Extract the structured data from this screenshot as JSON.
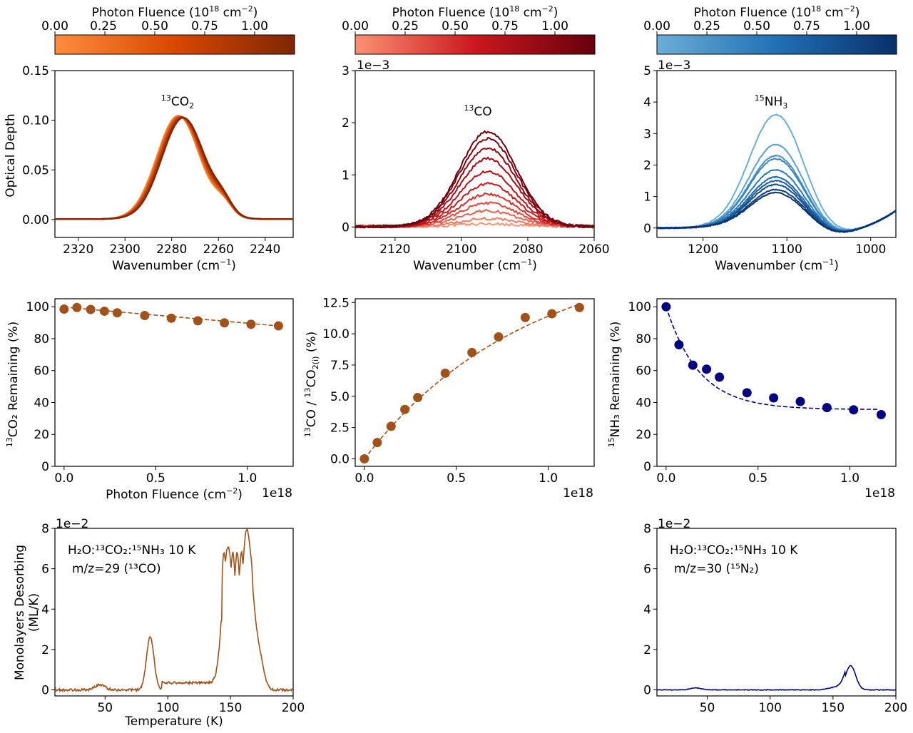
{
  "colors": {
    "orange_map": [
      "#fd8d3c",
      "#d94801",
      "#7f2704"
    ],
    "red_map": [
      "#fc9272",
      "#cb181d",
      "#67000d"
    ],
    "blue_map": [
      "#6baed6",
      "#2171b5",
      "#08306b"
    ],
    "fit_orange": "#a0521a",
    "point_orange": "#a0521a",
    "point_navy": "#000080",
    "tpd_orange": "#a0521a",
    "tpd_navy": "#000080"
  },
  "colorbars": [
    {
      "label_pre": "Photon Fluence (10",
      "label_sup": "18",
      "label_mid": " cm",
      "label_sup2": "−2",
      "label_post": ")",
      "ticks": [
        "0.00",
        "0.25",
        "0.50",
        "0.75",
        "1.00"
      ]
    },
    {
      "label_pre": "Photon Fluence (10",
      "label_sup": "18",
      "label_mid": " cm",
      "label_sup2": "−2",
      "label_post": ")",
      "ticks": [
        "0.00",
        "0.25",
        "0.50",
        "0.75",
        "1.00"
      ]
    },
    {
      "label_pre": "Photon Fluence (10",
      "label_sup": "18",
      "label_mid": " cm",
      "label_sup2": "−2",
      "label_post": ")",
      "ticks": [
        "0.00",
        "0.25",
        "0.50",
        "0.75",
        "1.00"
      ]
    }
  ],
  "labels": {
    "wavenumber_pre": "Wavenumber (cm",
    "wavenumber_sup": "−1",
    "wavenumber_post": ")",
    "optical_depth": "Optical Depth",
    "co2_annot": "CO",
    "co2_sup": "13",
    "co2_sub": "2",
    "co_annot": "CO",
    "co_sup": "13",
    "nh3_annot": "NH",
    "nh3_sup": "15",
    "nh3_sub": "3",
    "offset_1e3": "1e−3",
    "offset_1e18": "1e18",
    "offset_1e2": "1e−2",
    "co2_remaining": "CO₂ Remaining (%)",
    "co2_remaining_sup": "13",
    "ratio_ylabel_a": "CO / ",
    "ratio_ylabel_b": "CO",
    "ratio_ylabel_sub": "2(i)",
    "ratio_ylabel_c": " (%)",
    "nh3_remaining": "NH₃ Remaining (%)",
    "nh3_remaining_sup": "15",
    "fluence_xlabel_pre": "Photon Fluence (cm",
    "fluence_xlabel_sup": "−2",
    "fluence_xlabel_post": ")",
    "tpd_ylabel_1": "Monolayers Desorbing",
    "tpd_ylabel_2": "(ML/K)",
    "temperature": "Temperature (K)",
    "tpd_left_line1": "H₂O:¹³CO₂:¹⁵NH₃ 10 K",
    "tpd_left_line2": "m/z=29 (¹³CO)",
    "tpd_right_line1": "H₂O:¹³CO₂:¹⁵NH₃ 10 K",
    "tpd_right_line2": "m/z=30 (¹⁵N₂)"
  },
  "chart_data": [
    {
      "id": "ir_co2",
      "type": "line",
      "title": "13CO2 band",
      "xlabel": "Wavenumber (cm−1)",
      "ylabel": "Optical Depth",
      "xlim": [
        2330,
        2228
      ],
      "ylim": [
        -0.018,
        0.15
      ],
      "xticks": [
        2320,
        2300,
        2280,
        2260,
        2240
      ],
      "yticks": [
        0.0,
        0.05,
        0.1,
        0.15
      ],
      "ytick_labels": [
        "0.00",
        "0.05",
        "0.10",
        "0.15"
      ],
      "peak_center": 2275,
      "peak_height_start": 0.104,
      "peak_height_end": 0.102,
      "n_series": 11
    },
    {
      "id": "ir_co",
      "type": "line",
      "title": "13CO band",
      "xlabel": "Wavenumber (cm−1)",
      "ylabel": "",
      "xlim": [
        2132,
        2060
      ],
      "ylim": [
        -0.2,
        3.0
      ],
      "xticks": [
        2120,
        2100,
        2080,
        2060
      ],
      "yticks": [
        0,
        1,
        2,
        3
      ],
      "offset": "1e−3",
      "peak_center": 2092,
      "peak_heights": [
        0.05,
        0.15,
        0.3,
        0.45,
        0.62,
        0.82,
        1.05,
        1.3,
        1.5,
        1.68,
        1.82
      ]
    },
    {
      "id": "ir_nh3",
      "type": "line",
      "title": "15NH3 band",
      "xlabel": "Wavenumber (cm−1)",
      "ylabel": "",
      "xlim": [
        1255,
        970
      ],
      "ylim": [
        -0.3,
        5.0
      ],
      "xticks": [
        1200,
        1100,
        1000
      ],
      "yticks": [
        0,
        1,
        2,
        3,
        4,
        5
      ],
      "offset": "1e−3",
      "peak_center": 1113,
      "peak_heights": [
        3.6,
        2.65,
        2.3,
        2.2,
        1.85,
        1.62,
        1.5,
        1.38,
        1.22,
        1.12
      ]
    },
    {
      "id": "co2_remaining",
      "type": "scatter",
      "xlabel": "Photon Fluence (cm−2)",
      "ylabel": "13CO2 Remaining (%)",
      "x": [
        0.0,
        0.07,
        0.145,
        0.22,
        0.29,
        0.44,
        0.585,
        0.73,
        0.875,
        1.02,
        1.17
      ],
      "y": [
        98.5,
        99.5,
        98.3,
        97.2,
        96.2,
        94.5,
        92.8,
        91.2,
        89.9,
        89.0,
        88.0
      ],
      "fit": "linear",
      "xlim": [
        -0.05,
        1.25
      ],
      "ylim": [
        0,
        105
      ],
      "xticks": [
        0.0,
        0.5,
        1.0
      ],
      "xtick_labels": [
        "0.0",
        "0.5",
        "1.0"
      ],
      "yticks": [
        0,
        20,
        40,
        60,
        80,
        100
      ],
      "offset": "1e18"
    },
    {
      "id": "co_ratio",
      "type": "scatter",
      "xlabel": "",
      "ylabel": "13CO / 13CO2(i) (%)",
      "x": [
        0.0,
        0.07,
        0.145,
        0.22,
        0.29,
        0.44,
        0.585,
        0.73,
        0.875,
        1.02,
        1.17
      ],
      "y": [
        0.0,
        1.3,
        2.6,
        3.95,
        4.9,
        6.85,
        8.5,
        9.75,
        11.3,
        11.6,
        12.1
      ],
      "fit": "saturating",
      "xlim": [
        -0.05,
        1.25
      ],
      "ylim": [
        -0.6,
        12.8
      ],
      "xticks": [
        0.0,
        0.5,
        1.0
      ],
      "xtick_labels": [
        "0.0",
        "0.5",
        "1.0"
      ],
      "yticks": [
        0.0,
        2.5,
        5.0,
        7.5,
        10.0,
        12.5
      ],
      "ytick_labels": [
        "0.0",
        "2.5",
        "5.0",
        "7.5",
        "10.0",
        "12.5"
      ],
      "offset": "1e18"
    },
    {
      "id": "nh3_remaining",
      "type": "scatter",
      "xlabel": "",
      "ylabel": "15NH3 Remaining (%)",
      "x": [
        0.0,
        0.07,
        0.145,
        0.22,
        0.29,
        0.44,
        0.585,
        0.73,
        0.875,
        1.02,
        1.17
      ],
      "y": [
        100,
        76.2,
        63.4,
        60.9,
        55.9,
        46.1,
        42.9,
        40.6,
        36.8,
        35.4,
        32.4
      ],
      "fit": "exponential",
      "xlim": [
        -0.05,
        1.25
      ],
      "ylim": [
        0,
        105
      ],
      "xticks": [
        0.0,
        0.5,
        1.0
      ],
      "xtick_labels": [
        "0.0",
        "0.5",
        "1.0"
      ],
      "yticks": [
        0,
        20,
        40,
        60,
        80,
        100
      ],
      "offset": "1e18"
    },
    {
      "id": "tpd_29",
      "type": "line",
      "xlabel": "Temperature (K)",
      "ylabel": "Monolayers Desorbing (ML/K)",
      "xlim": [
        10,
        200
      ],
      "ylim": [
        -0.3,
        8.0
      ],
      "xticks": [
        50,
        100,
        150,
        200
      ],
      "yticks": [
        0,
        2,
        4,
        6,
        8
      ],
      "offset": "1e−2",
      "peaks": [
        {
          "T": 46,
          "height": 0.25
        },
        {
          "T": 86,
          "height": 2.6
        },
        {
          "T": 148,
          "height": 7.1
        },
        {
          "T": 163,
          "height": 7.8
        },
        {
          "T": 172,
          "height": 1.8
        }
      ]
    },
    {
      "id": "tpd_30",
      "type": "line",
      "xlabel": "",
      "ylabel": "",
      "xlim": [
        10,
        200
      ],
      "ylim": [
        -0.3,
        8.0
      ],
      "xticks": [
        50,
        100,
        150,
        200
      ],
      "yticks": [
        0,
        2,
        4,
        6,
        8
      ],
      "offset": "1e−2",
      "peaks": [
        {
          "T": 41,
          "height": 0.1
        },
        {
          "T": 164,
          "height": 1.2
        }
      ]
    }
  ]
}
